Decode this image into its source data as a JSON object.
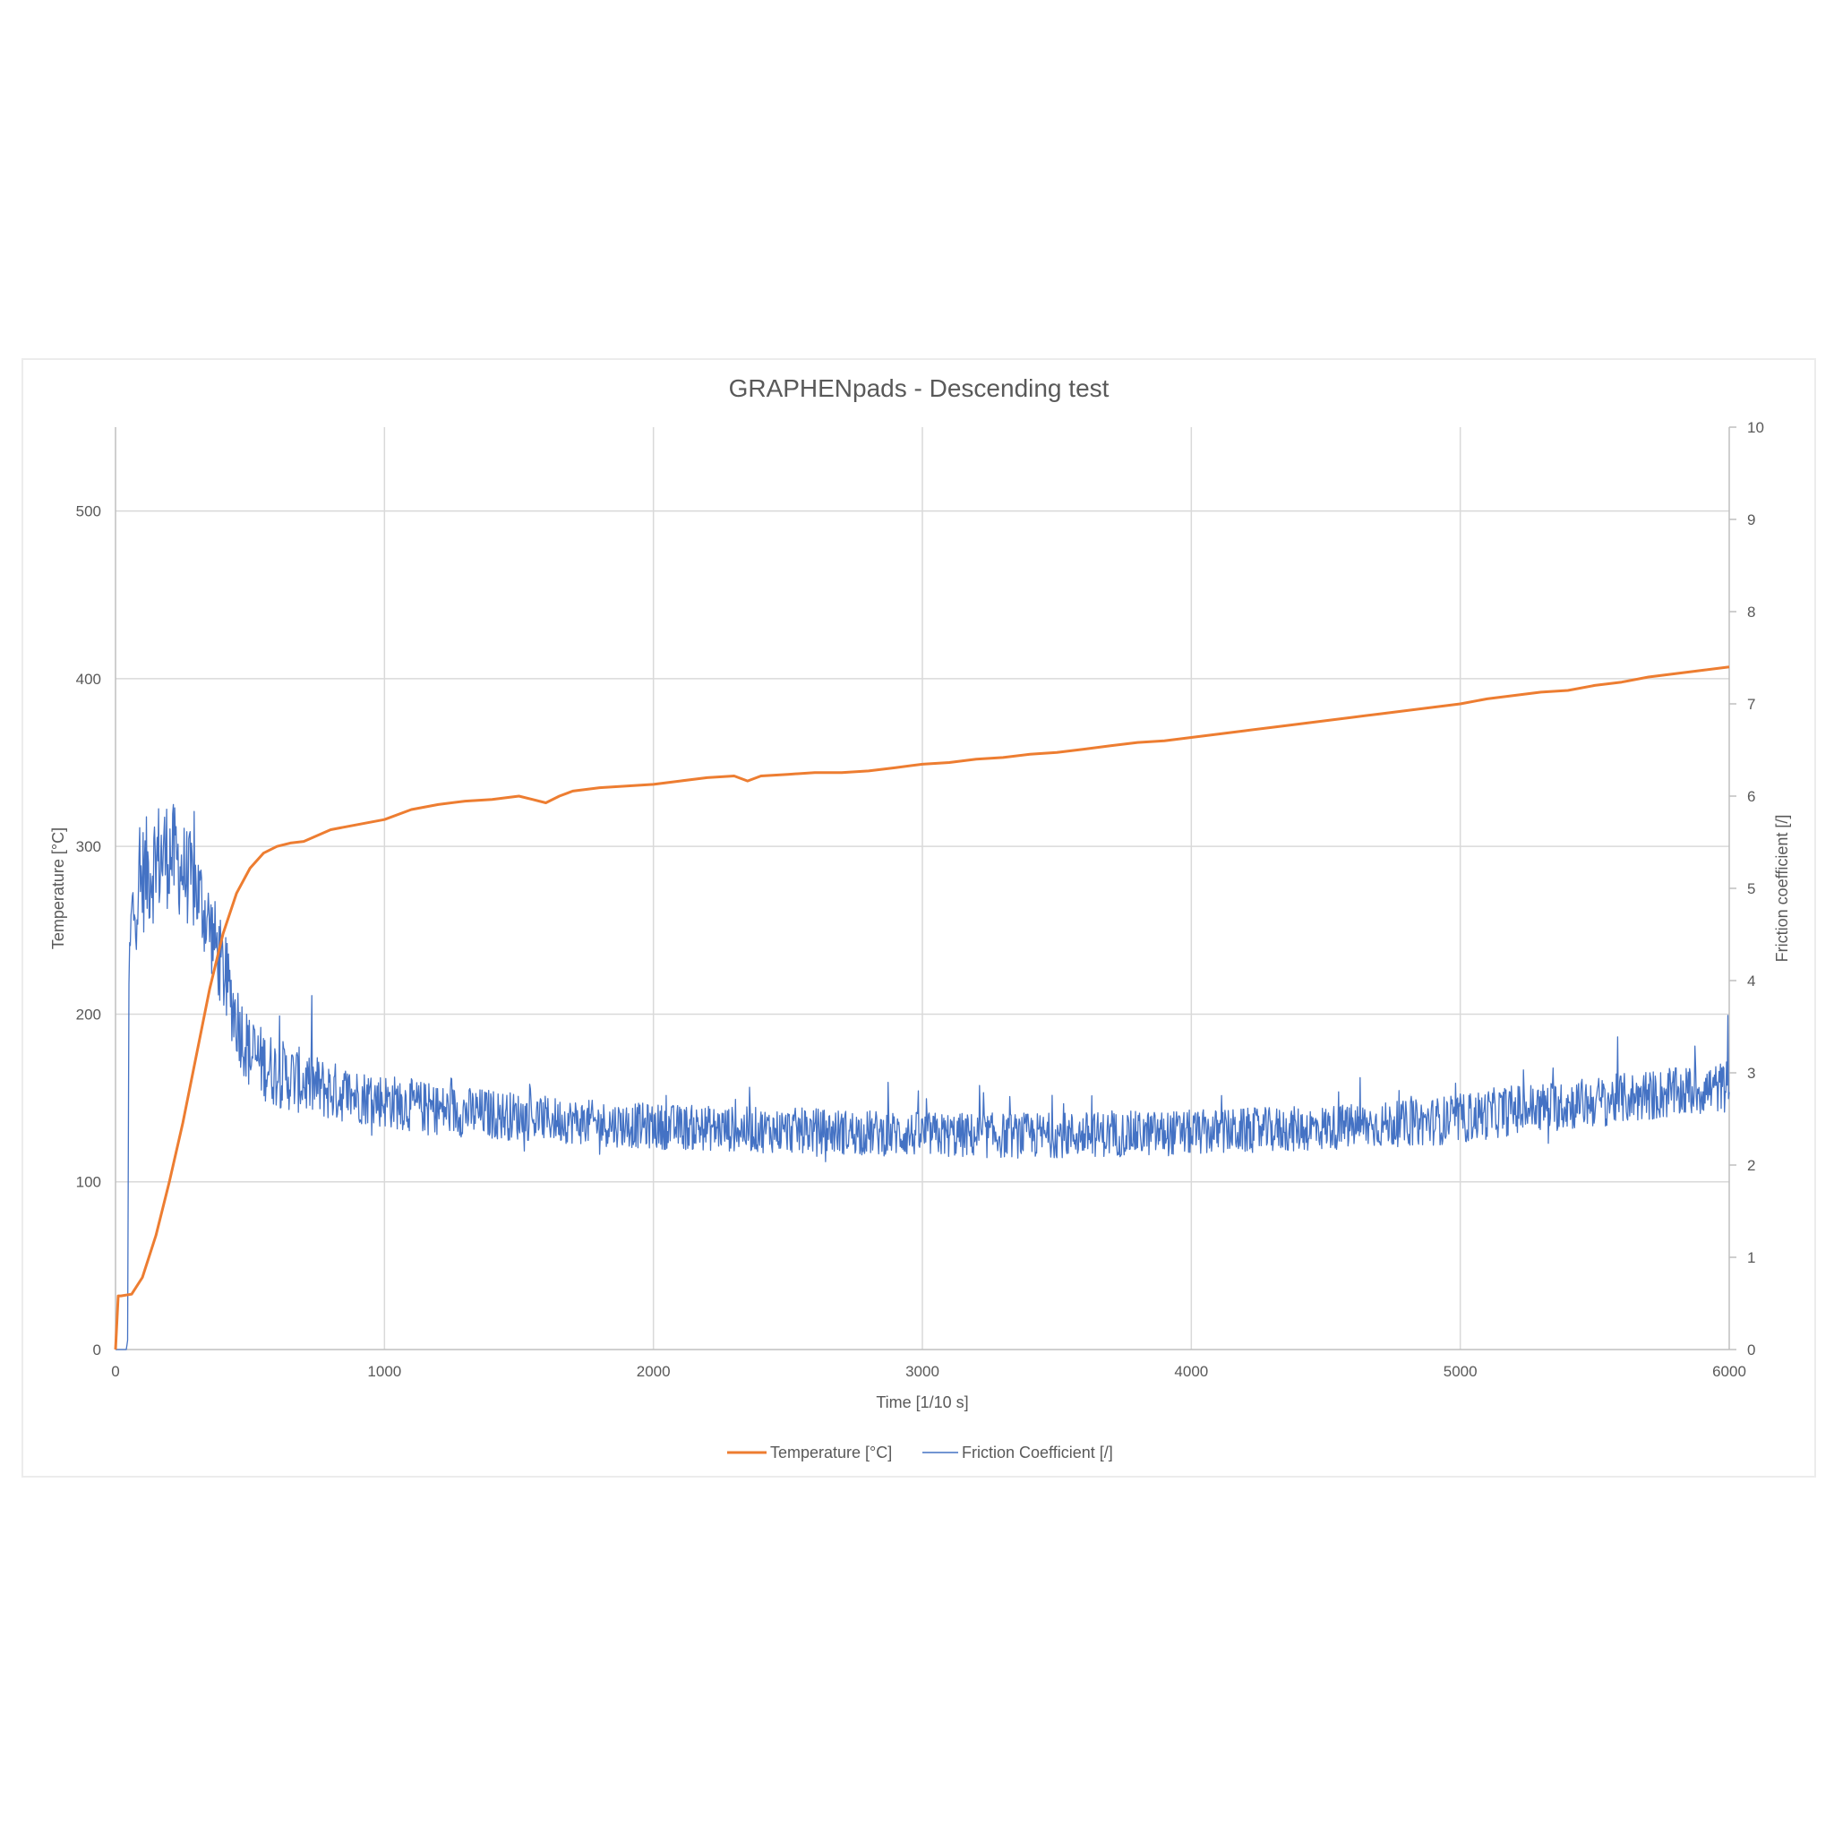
{
  "chart_data": {
    "type": "line",
    "title": "GRAPHENpads - Descending test",
    "xlabel": "Time [1/10 s]",
    "ylabel_left": "Temperature [°C]",
    "ylabel_right": "Friction coefficient [/]",
    "xlim": [
      0,
      6000
    ],
    "ylim_left": [
      0,
      550
    ],
    "ylim_right": [
      0,
      10
    ],
    "x_ticks": [
      0,
      1000,
      2000,
      3000,
      4000,
      5000,
      6000
    ],
    "y_left_ticks": [
      0,
      100,
      200,
      300,
      400,
      500
    ],
    "y_right_ticks": [
      0,
      1,
      2,
      3,
      4,
      5,
      6,
      7,
      8,
      9,
      10
    ],
    "grid": true,
    "legend_position": "bottom",
    "series": [
      {
        "name": "Temperature [°C]",
        "axis": "left",
        "color": "#ED7D31",
        "x": [
          0,
          10,
          20,
          60,
          100,
          150,
          200,
          250,
          300,
          350,
          400,
          450,
          500,
          550,
          600,
          650,
          700,
          800,
          900,
          1000,
          1100,
          1200,
          1300,
          1400,
          1500,
          1550,
          1600,
          1650,
          1700,
          1800,
          1900,
          2000,
          2100,
          2200,
          2300,
          2350,
          2400,
          2500,
          2600,
          2700,
          2800,
          2900,
          3000,
          3100,
          3200,
          3300,
          3400,
          3500,
          3600,
          3700,
          3800,
          3900,
          4000,
          4100,
          4200,
          4300,
          4400,
          4500,
          4600,
          4700,
          4800,
          4900,
          5000,
          5100,
          5200,
          5300,
          5400,
          5500,
          5600,
          5700,
          5800,
          5900,
          6000
        ],
        "values": [
          0,
          32,
          32,
          33,
          43,
          68,
          100,
          135,
          175,
          215,
          248,
          272,
          287,
          296,
          300,
          302,
          303,
          310,
          313,
          316,
          322,
          325,
          327,
          328,
          330,
          328,
          326,
          330,
          333,
          335,
          336,
          337,
          339,
          341,
          342,
          339,
          342,
          343,
          344,
          344,
          345,
          347,
          349,
          350,
          352,
          353,
          355,
          356,
          358,
          360,
          362,
          363,
          365,
          367,
          369,
          371,
          373,
          375,
          377,
          379,
          381,
          383,
          385,
          388,
          390,
          392,
          393,
          396,
          398,
          401,
          403,
          405,
          407
        ]
      },
      {
        "name": "Friction Coefficient [/]",
        "axis": "right",
        "color": "#4472C4",
        "x": [
          0,
          40,
          45,
          50,
          60,
          100,
          150,
          200,
          250,
          300,
          350,
          400,
          450,
          500,
          600,
          700,
          800,
          900,
          1000,
          1200,
          1400,
          1600,
          1800,
          2000,
          2200,
          2400,
          2600,
          2800,
          3000,
          3200,
          3400,
          3600,
          3800,
          4000,
          4200,
          4400,
          4600,
          4800,
          5000,
          5200,
          5400,
          5600,
          5800,
          6000
        ],
        "values": [
          0,
          0,
          0.1,
          4.0,
          4.7,
          5.1,
          5.3,
          5.4,
          5.2,
          5.0,
          4.6,
          4.1,
          3.6,
          3.2,
          3.0,
          2.9,
          2.8,
          2.75,
          2.7,
          2.6,
          2.55,
          2.5,
          2.45,
          2.42,
          2.4,
          2.38,
          2.37,
          2.35,
          2.33,
          2.32,
          2.32,
          2.33,
          2.34,
          2.35,
          2.37,
          2.39,
          2.42,
          2.45,
          2.5,
          2.6,
          2.65,
          2.72,
          2.78,
          2.85
        ],
        "noise_amplitude": [
          0,
          0,
          0,
          0.6,
          0.9,
          1.1,
          1.2,
          1.1,
          1.0,
          0.95,
          0.9,
          0.85,
          0.8,
          0.75,
          0.7,
          0.65,
          0.6,
          0.55,
          0.55,
          0.5,
          0.5,
          0.45,
          0.45,
          0.45,
          0.45,
          0.45,
          0.45,
          0.45,
          0.45,
          0.45,
          0.45,
          0.45,
          0.45,
          0.45,
          0.45,
          0.45,
          0.45,
          0.45,
          0.5,
          0.5,
          0.5,
          0.5,
          0.5,
          0.5
        ]
      }
    ]
  }
}
